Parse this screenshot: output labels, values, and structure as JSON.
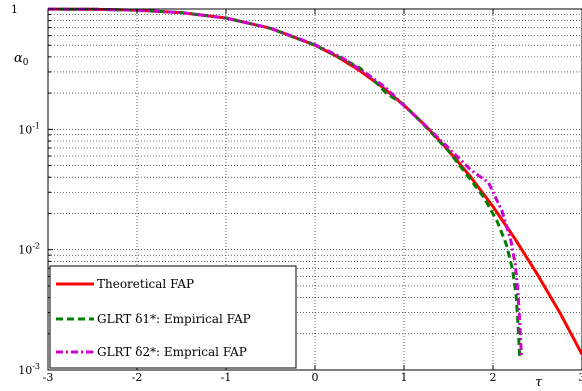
{
  "chart_data": {
    "type": "line",
    "title": "",
    "xlabel": "τ",
    "ylabel": "α0",
    "xlim": [
      -3,
      3
    ],
    "ylim": [
      0.001,
      1
    ],
    "yscale": "log",
    "grid": true,
    "legend_position": "bottom-left",
    "x_ticks": [
      -3,
      -2,
      -1,
      0,
      1,
      2,
      3
    ],
    "x_tick_labels": [
      "-3",
      "-2",
      "-1",
      "0",
      "1",
      "2",
      "3"
    ],
    "y_ticks": [
      0.001,
      0.01,
      0.1,
      1
    ],
    "y_tick_labels": [
      "10^-3",
      "10^-2",
      "10^-1",
      "1"
    ],
    "series": [
      {
        "name": "Theoretical FAP",
        "color": "#ff0000",
        "dash": "solid",
        "x": [
          -3,
          -2.5,
          -2,
          -1.5,
          -1,
          -0.5,
          0,
          0.25,
          0.5,
          0.75,
          1,
          1.25,
          1.5,
          1.75,
          2,
          2.25,
          2.5,
          2.75,
          3
        ],
        "y": [
          0.9987,
          0.9938,
          0.9772,
          0.9332,
          0.8413,
          0.6915,
          0.5,
          0.4013,
          0.3085,
          0.2266,
          0.1587,
          0.1056,
          0.0668,
          0.0401,
          0.0228,
          0.0122,
          0.0062,
          0.003,
          0.00135
        ]
      },
      {
        "name": "GLRT δ1*: Empirical FAP",
        "color": "#008000",
        "dash": "dashed",
        "x": [
          -3,
          -2.5,
          -2,
          -1.5,
          -1,
          -0.5,
          0,
          0.25,
          0.5,
          0.65,
          0.8,
          1,
          1.25,
          1.5,
          1.75,
          1.9,
          2.05,
          2.15,
          2.22,
          2.26,
          2.28,
          2.3
        ],
        "y": [
          0.9985,
          0.9935,
          0.977,
          0.933,
          0.841,
          0.69,
          0.5,
          0.405,
          0.325,
          0.262,
          0.2,
          0.16,
          0.104,
          0.066,
          0.038,
          0.027,
          0.017,
          0.011,
          0.0068,
          0.0042,
          0.0025,
          0.0013
        ]
      },
      {
        "name": "GLRT δ2*: Emprical FAP",
        "color": "#cc00cc",
        "dash": "dashdot",
        "x": [
          -3,
          -2.5,
          -2,
          -1.5,
          -1,
          -0.5,
          0,
          0.3,
          0.6,
          0.8,
          1,
          1.25,
          1.5,
          1.75,
          1.95,
          2.1,
          2.2,
          2.25,
          2.28,
          2.3,
          2.32
        ],
        "y": [
          0.9985,
          0.9935,
          0.977,
          0.932,
          0.84,
          0.692,
          0.505,
          0.395,
          0.283,
          0.22,
          0.157,
          0.106,
          0.07,
          0.046,
          0.036,
          0.021,
          0.012,
          0.0075,
          0.0045,
          0.0025,
          0.0013
        ]
      }
    ]
  }
}
